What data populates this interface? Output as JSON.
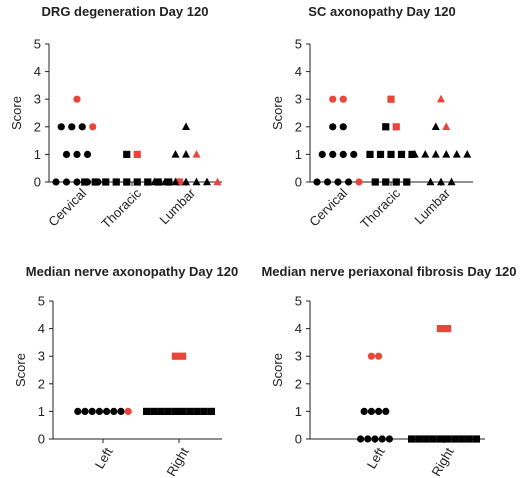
{
  "colors": {
    "black": "#000000",
    "red": "#e8463a"
  },
  "chart_data": [
    {
      "type": "scatter",
      "title": "DRG degeneration Day 120",
      "ylabel": "Score",
      "ylim": [
        0,
        5
      ],
      "yticks": [
        0,
        1,
        2,
        3,
        4,
        5
      ],
      "categories": [
        "Cervical",
        "Thoracic",
        "Lumbar"
      ],
      "markers": [
        "circle",
        "square",
        "triangle"
      ],
      "points": [
        {
          "black": {
            "0": 5,
            "1": 3,
            "2": 3
          },
          "red": {
            "2": 1,
            "3": 1
          }
        },
        {
          "black": {
            "0": 9,
            "1": 1
          },
          "red": {
            "0": 1,
            "1": 1
          }
        },
        {
          "black": {
            "0": 6,
            "1": 2,
            "2": 1
          },
          "red": {
            "0": 1,
            "1": 1
          }
        }
      ]
    },
    {
      "type": "scatter",
      "title": "SC axonopathy Day 120",
      "ylabel": "Score",
      "ylim": [
        0,
        5
      ],
      "yticks": [
        0,
        1,
        2,
        3,
        4,
        5
      ],
      "categories": [
        "Cervical",
        "Thoracic",
        "Lumbar"
      ],
      "markers": [
        "circle",
        "square",
        "triangle"
      ],
      "points": [
        {
          "black": {
            "0": 4,
            "1": 4,
            "2": 2
          },
          "red": {
            "0": 1,
            "3": 2
          }
        },
        {
          "black": {
            "0": 4,
            "1": 5,
            "2": 1
          },
          "red": {
            "2": 1,
            "3": 1
          }
        },
        {
          "black": {
            "0": 3,
            "1": 6,
            "2": 1
          },
          "red": {
            "2": 1,
            "3": 1
          }
        }
      ]
    },
    {
      "type": "scatter",
      "title": "Median nerve axonopathy Day 120",
      "ylabel": "Score",
      "ylim": [
        0,
        5
      ],
      "yticks": [
        0,
        1,
        2,
        3,
        4,
        5
      ],
      "categories": [
        "Left",
        "Right"
      ],
      "markers": [
        "circle",
        "square"
      ],
      "points": [
        {
          "black": {
            "1": 7
          },
          "red": {
            "1": 1
          }
        },
        {
          "black": {
            "1": 10
          },
          "red": {
            "3": 2
          }
        }
      ]
    },
    {
      "type": "scatter",
      "title": "Median nerve periaxonal fibrosis Day 120",
      "ylabel": "Score",
      "ylim": [
        0,
        5
      ],
      "yticks": [
        0,
        1,
        2,
        3,
        4,
        5
      ],
      "categories": [
        "Left",
        "Right"
      ],
      "markers": [
        "circle",
        "square"
      ],
      "points": [
        {
          "black": {
            "0": 5,
            "1": 4
          },
          "red": {
            "3": 2
          }
        },
        {
          "black": {
            "0": 10
          },
          "red": {
            "4": 2
          }
        }
      ]
    }
  ]
}
